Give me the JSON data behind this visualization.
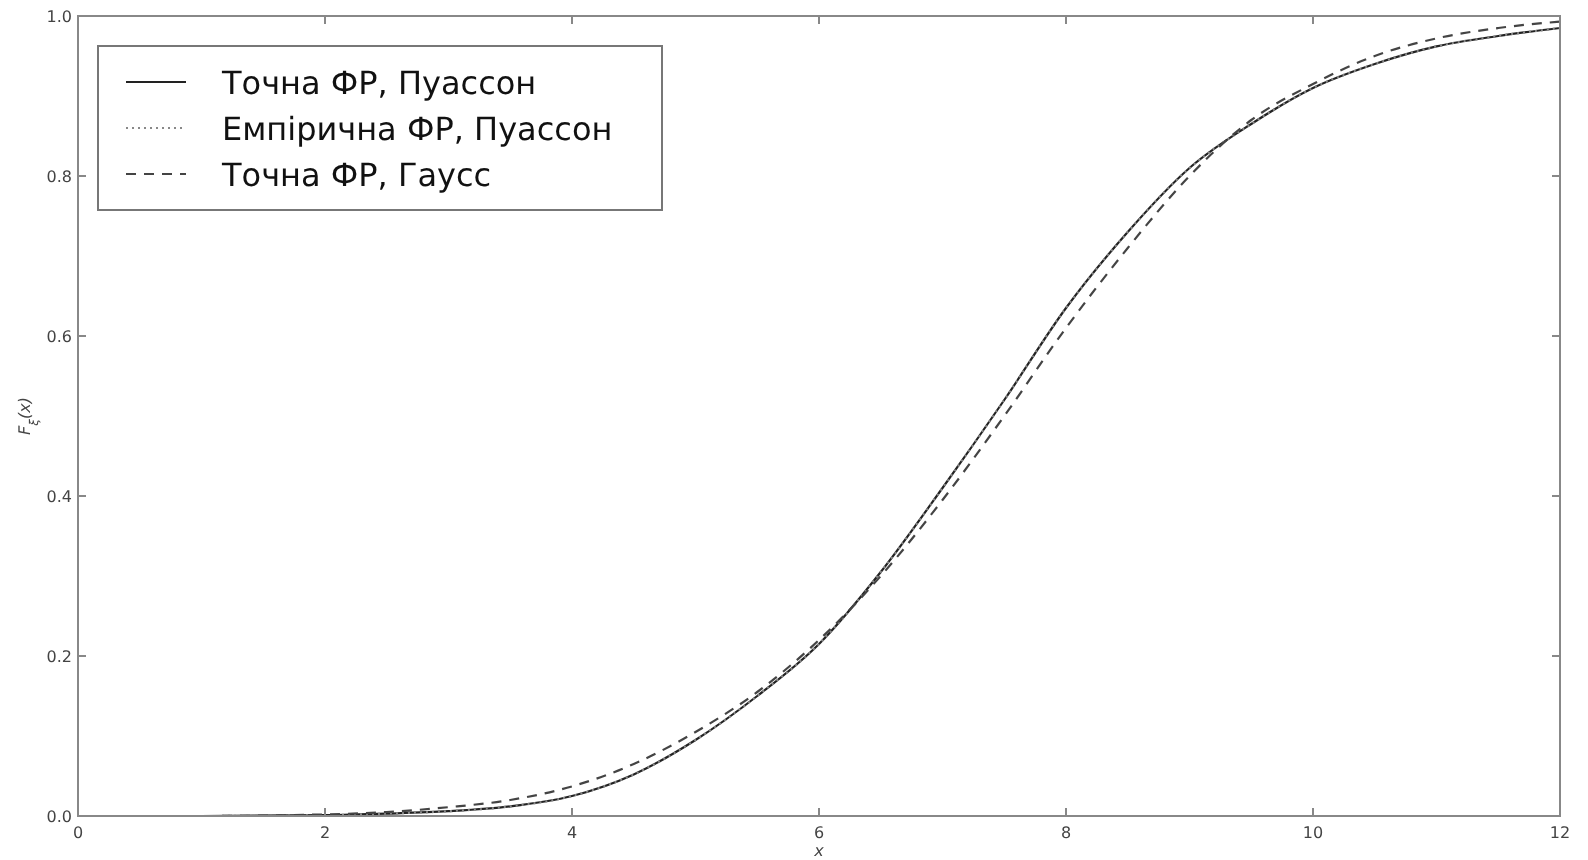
{
  "chart_data": {
    "type": "line",
    "xlabel": "x",
    "ylabel": "F$_{ξ}$(x)",
    "xlim": [
      0,
      12
    ],
    "xticks": [
      0,
      2,
      4,
      6,
      8,
      10,
      12
    ],
    "ylim": [
      0,
      1
    ],
    "yticks": [
      {
        "value": 0,
        "label": "0.0"
      },
      {
        "value": 0.2,
        "label": "0.2"
      },
      {
        "value": 0.4,
        "label": "0.4"
      },
      {
        "value": 0.6,
        "label": "0.6"
      },
      {
        "value": 0.8,
        "label": "0.8"
      },
      {
        "value": 1,
        "label": "1.0"
      }
    ],
    "x": [
      0,
      1,
      2,
      2.5,
      3,
      3.5,
      4,
      4.5,
      5,
      5.5,
      6,
      6.5,
      7,
      7.5,
      8,
      8.5,
      9,
      9.5,
      10,
      10.5,
      11,
      11.5,
      12
    ],
    "grid": false,
    "legend": "top left",
    "series": [
      {
        "name": "Точна ФР, Пуассон",
        "color": "#222222",
        "line_style": "solid",
        "values": [
          0,
          0,
          0.001,
          0.003,
          0.006,
          0.012,
          0.025,
          0.052,
          0.095,
          0.15,
          0.215,
          0.305,
          0.41,
          0.52,
          0.635,
          0.73,
          0.81,
          0.865,
          0.91,
          0.94,
          0.962,
          0.975,
          0.985
        ]
      },
      {
        "name": "Емпірична ФР, Пуассон",
        "color": "#888888",
        "line_style": "dotted",
        "values": [
          0,
          0,
          0.001,
          0.003,
          0.006,
          0.012,
          0.025,
          0.052,
          0.095,
          0.15,
          0.215,
          0.305,
          0.41,
          0.52,
          0.635,
          0.73,
          0.81,
          0.865,
          0.91,
          0.94,
          0.962,
          0.975,
          0.985
        ]
      },
      {
        "name": "Точна ФР, Гаусс",
        "color": "#444444",
        "line_style": "dashed",
        "values": [
          0,
          0,
          0.002,
          0.005,
          0.011,
          0.02,
          0.037,
          0.065,
          0.105,
          0.155,
          0.22,
          0.3,
          0.395,
          0.5,
          0.61,
          0.71,
          0.8,
          0.87,
          0.915,
          0.95,
          0.972,
          0.985,
          0.993
        ]
      }
    ]
  }
}
